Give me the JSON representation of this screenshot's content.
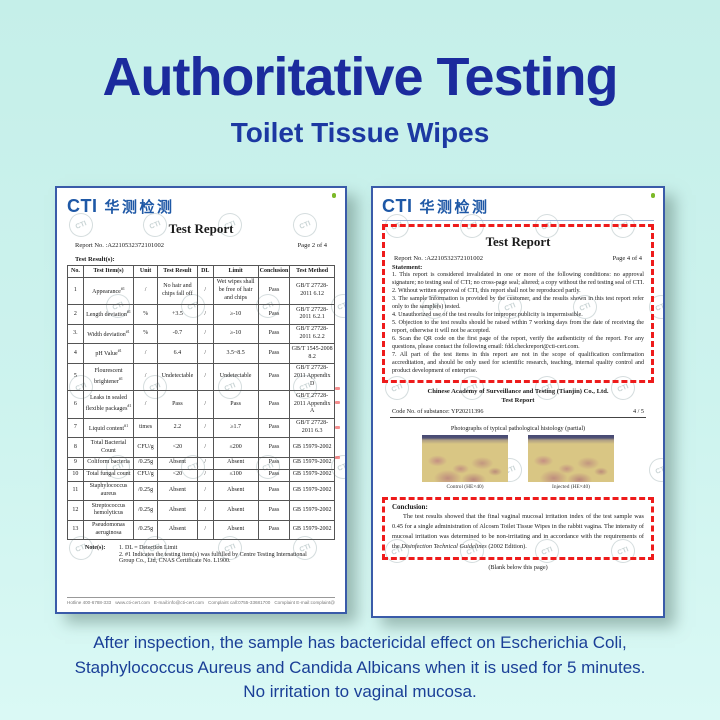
{
  "watermark": "CTI",
  "colors": {
    "background_top": "#c5efe9",
    "background_bottom": "#daf9f5",
    "title_blue": "#1b2b9d",
    "doc_border_blue": "#3a5ba9",
    "logo_blue": "#1e58a6",
    "logo_dot_green": "#7cb928",
    "red_dashed": "#ee1b1b"
  },
  "page": {
    "title": "Authoritative Testing",
    "subtitle": "Toilet Tissue Wipes",
    "footer_lines": [
      "After inspection, the sample has bactericidal effect on Escherichia Coli,",
      "Staphylococcus Aureus and Candida Albicans when it is used for 5 minutes.",
      "No irritation to vaginal mucosa."
    ]
  },
  "left_doc": {
    "logo_cti": "CTI",
    "logo_cn": "华测检测",
    "title": "Test Report",
    "report_no": "Report No. :A2210532372101002",
    "page": "Page 2 of 4",
    "section_label": "Test Result(s):",
    "table": {
      "headers": [
        "No.",
        "Test Item(s)",
        "Unit",
        "Test Result",
        "DL",
        "Limit",
        "Conclusion",
        "Test Method"
      ],
      "rows": [
        [
          "1",
          "Appearance^#1",
          "/",
          "No hair and chips fall off",
          "/",
          "Wet wipes shall be free of hair and chips",
          "Pass",
          "GB/T 27728-2011 6.12"
        ],
        [
          "2",
          "Length deviation^#1",
          "%",
          "+3.5",
          "/",
          "≥-10",
          "Pass",
          "GB/T 27728-2011 6.2.1"
        ],
        [
          "3.",
          "Width deviation^#1",
          "%",
          "-0.7",
          "/",
          "≥-10",
          "Pass",
          "GB/T 27728-2011 6.2.2"
        ],
        [
          "4",
          "pH Value^#1",
          "/",
          "6.4",
          "/",
          "3.5~8.5",
          "Pass",
          "GB/T 1545-2008 8.2"
        ],
        [
          "5",
          "Flourescent brightener^#1",
          "/",
          "Undetectable",
          "/",
          "Undetectable",
          "Pass",
          "GB/T 27728-2011 Appendix D"
        ],
        [
          "6",
          "Leaks in sealed flexible packages^#1",
          "/",
          "Pass",
          "/",
          "Pass",
          "Pass",
          "GB/T 27728-2011 Appendix A"
        ],
        [
          "7",
          "Liquid content^#1",
          "times",
          "2.2",
          "/",
          "≥1.7",
          "Pass",
          "GB/T 27728-2011 6.3"
        ],
        [
          "8",
          "Total Bacterial Count",
          "CFU/g",
          "<20",
          "/",
          "≤200",
          "Pass",
          "GB 15979-2002"
        ],
        [
          "9",
          "Coliform bacteria",
          "/0.25g",
          "Absent",
          "/",
          "Absent",
          "Pass",
          "GB 15979-2002"
        ],
        [
          "10",
          "Total fungal count",
          "CFU/g",
          "<20",
          "/",
          "≤100",
          "Pass",
          "GB 15979-2002"
        ],
        [
          "11",
          "Staphylococcus aureus",
          "/0.25g",
          "Absent",
          "/",
          "Absent",
          "Pass",
          "GB 15979-2002"
        ],
        [
          "12",
          "Streptococcus hemolyticus",
          "/0.25g",
          "Absent",
          "/",
          "Absent",
          "Pass",
          "GB 15979-2002"
        ],
        [
          "13",
          "Pseudomonas aeruginosa",
          "/0.25g",
          "Absent",
          "/",
          "Absent",
          "Pass",
          "GB 15979-2002"
        ]
      ]
    },
    "notes_label": "Note(s):",
    "notes": [
      "1. DL = Detection Limit",
      "2. #1 Indicates the testing item(s) was fulfilled by Centre Testing International Group Co., Ltd, CNAS Certificate No. L1900."
    ],
    "footer_items": [
      "Hotline 400-6788-333",
      "www.cti-cert.com",
      "E-mail:info@cti-cert.com",
      "Complaint call:0755-33681700",
      "Complaint E-mail:complaint@cti-cert.com"
    ]
  },
  "right_doc": {
    "logo_cti": "CTI",
    "logo_cn": "华测检测",
    "title": "Test Report",
    "report_no": "Report No. :A2210532372101002",
    "page": "Page 4 of 4",
    "statement_label": "Statement:",
    "statements": [
      "1. This report is considered invalidated in one or more of the following conditions: no approval signature; no testing seal of CTI; no cross-page seal; altered; a copy without the red testing seal of CTI.",
      "2. Without written approval of CTI, this report shall not be reproduced partly.",
      "3. The sample Information is provided by the customer, and the results shown in this test report refer only to the sample(s) tested.",
      "4. Unauthorized use of the test results for improper publicity is impermissible.",
      "5. Objection to the test results should be raised within 7 working days from the date of receiving the report, otherwise it will not be accepted.",
      "6. Scan the QR code on the first page of the report, verify the authenticity of the report. For any questions, please contact the following email: fdd.checkreport@cti-cert.com.",
      "7. All part of the test items in this report are not in the scope of qualification confirmation accreditation, and should be only used for scientific research, teaching, internal quality control and product development of enterprise."
    ],
    "agency": "Chinese Academy of Surveillance and Testing (Tianjin) Co., Ltd.",
    "agency_title": "Test Report",
    "code_no": "Code No. of substance: YP20211396",
    "page_frac": "4 / 5",
    "photos_caption": "Photographs of typical pathological histology (partial)",
    "photo_labels": [
      "Control (HE×40)",
      "Injected (HE×40)"
    ],
    "conclusion_label": "Conclusion:",
    "conclusion_pre_italic": "The test results showed that the final vaginal mucosal irritation index of the test sample was 0.45 for a single administration of Alcosm Toilet Tissue Wipes in the rabbit vagina. The intensity of mucosal irritation was determined to be non-irritating and in accordance with the requirements of the ",
    "conclusion_italic": "Disinfection Technical Guidelines",
    "conclusion_post_italic": " (2002 Edition).",
    "blank_note": "(Blank below this page)"
  }
}
